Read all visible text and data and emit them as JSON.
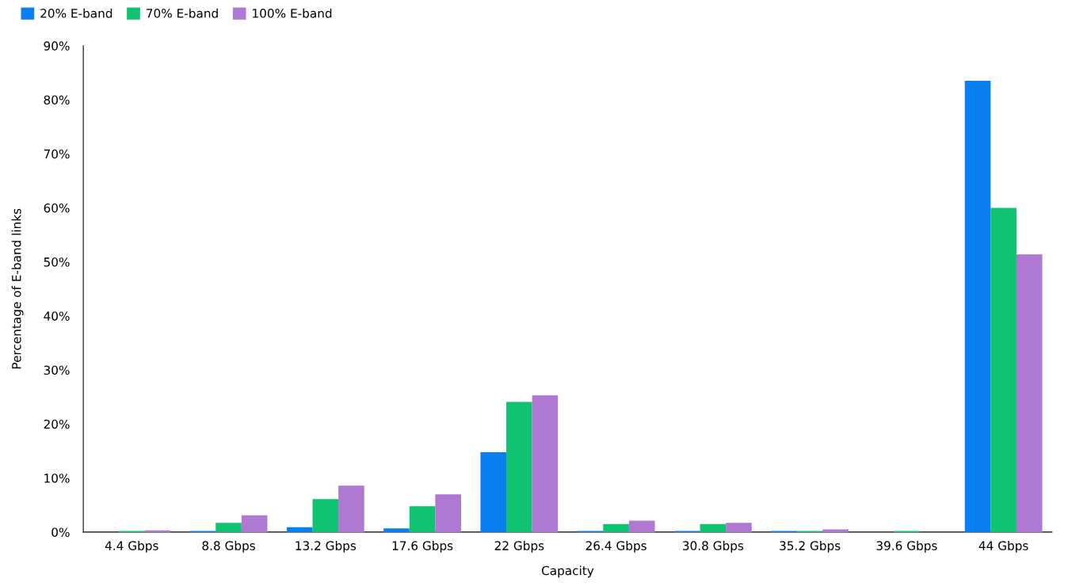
{
  "chart_data": {
    "type": "bar",
    "xlabel": "Capacity",
    "ylabel": "Percentage of E-band links",
    "categories": [
      "4.4 Gbps",
      "8.8 Gbps",
      "13.2 Gbps",
      "17.6 Gbps",
      "22 Gbps",
      "26.4 Gbps",
      "30.8 Gbps",
      "35.2 Gbps",
      "39.6 Gbps",
      "44 Gbps"
    ],
    "series": [
      {
        "name": "20% E-band",
        "color": "#0a7ff0",
        "values": [
          0,
          0.2,
          0.9,
          0.7,
          14.8,
          0.2,
          0.2,
          0.2,
          0,
          83.5
        ]
      },
      {
        "name": "70% E-band",
        "color": "#0fc373",
        "values": [
          0.2,
          1.7,
          6.1,
          4.8,
          24.1,
          1.5,
          1.5,
          0.2,
          0.2,
          60.0
        ]
      },
      {
        "name": "100% E-band",
        "color": "#af78d2",
        "values": [
          0.3,
          3.1,
          8.6,
          7.0,
          25.3,
          2.1,
          1.7,
          0.5,
          0,
          51.4
        ]
      }
    ],
    "ylim": [
      0,
      90
    ],
    "yticks": [
      {
        "value": 0,
        "label": "0%"
      },
      {
        "value": 10,
        "label": "10%"
      },
      {
        "value": 20,
        "label": "20%"
      },
      {
        "value": 30,
        "label": "30%"
      },
      {
        "value": 40,
        "label": "40%"
      },
      {
        "value": 50,
        "label": "50%"
      },
      {
        "value": 60,
        "label": "60%"
      },
      {
        "value": 70,
        "label": "70%"
      },
      {
        "value": 80,
        "label": "80%"
      },
      {
        "value": 90,
        "label": "90%"
      }
    ],
    "grid": false,
    "legend": "top left"
  }
}
